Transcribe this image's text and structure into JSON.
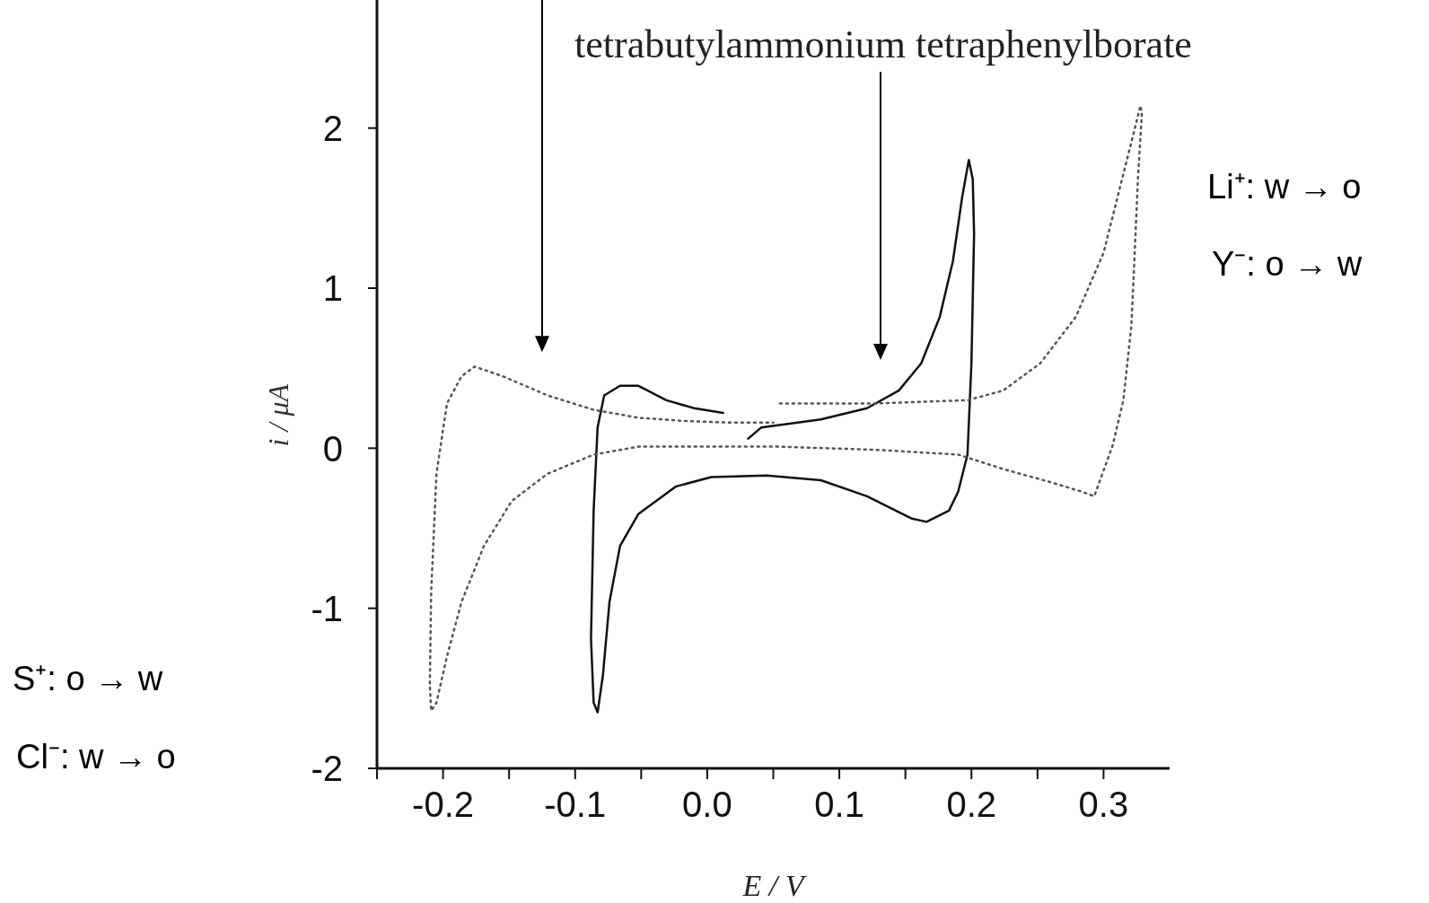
{
  "chart_data": {
    "type": "line",
    "xlabel": "E / V",
    "ylabel": "i / μA",
    "xlim": [
      -0.25,
      0.35
    ],
    "ylim": [
      -2,
      2.8
    ],
    "xticks": [
      {
        "value": -0.25,
        "label": null
      },
      -0.2,
      {
        "value": -0.15,
        "label": null
      },
      -0.1,
      {
        "value": -0.05,
        "label": null
      },
      {
        "value": 0,
        "label": "0.0"
      },
      {
        "value": 0.05,
        "label": null
      },
      0.1,
      {
        "value": 0.15,
        "label": null
      },
      0.2,
      {
        "value": 0.25,
        "label": null
      },
      0.3
    ],
    "yticks": [
      -2,
      -1,
      0,
      1,
      2
    ],
    "marker": "none",
    "series": [
      {
        "color": "#111111",
        "line_style": "solid",
        "x": [
          0.031,
          0.041,
          0.086,
          0.121,
          0.145,
          0.162,
          0.176,
          0.186,
          0.193,
          0.198,
          0.201,
          0.202,
          0.2,
          0.197,
          0.19,
          0.183,
          0.166,
          0.155,
          0.121,
          0.086,
          0.045,
          0.003,
          -0.024,
          -0.052,
          -0.066,
          -0.074,
          -0.079,
          -0.083,
          -0.086,
          -0.088,
          -0.086,
          -0.083,
          -0.078,
          -0.066,
          -0.052,
          -0.031,
          -0.01,
          0.012
        ],
        "values": [
          0.06,
          0.13,
          0.18,
          0.25,
          0.36,
          0.53,
          0.82,
          1.17,
          1.57,
          1.8,
          1.68,
          1.34,
          0.53,
          -0.04,
          -0.27,
          -0.39,
          -0.46,
          -0.44,
          -0.3,
          -0.2,
          -0.17,
          -0.18,
          -0.24,
          -0.41,
          -0.61,
          -0.96,
          -1.42,
          -1.65,
          -1.59,
          -1.19,
          -0.39,
          0.13,
          0.33,
          0.39,
          0.39,
          0.3,
          0.25,
          0.22
        ]
      },
      {
        "color": "#555555",
        "line_style": "dotted",
        "x": [
          0.055,
          0.086,
          0.128,
          0.197,
          0.224,
          0.252,
          0.279,
          0.3,
          0.314,
          0.321,
          0.328,
          0.329,
          0.326,
          0.323,
          0.321,
          0.315,
          0.307,
          0.293,
          0.283,
          0.259,
          0.224,
          0.19,
          0.128,
          0.052,
          -0.052,
          -0.086,
          -0.121,
          -0.148,
          -0.169,
          -0.186,
          -0.197,
          -0.205,
          -0.209,
          -0.21,
          -0.209,
          -0.205,
          -0.197,
          -0.186,
          -0.176,
          -0.155,
          -0.121,
          -0.086,
          -0.052,
          -0.017,
          0.017,
          0.05
        ],
        "values": [
          0.28,
          0.28,
          0.28,
          0.3,
          0.36,
          0.53,
          0.82,
          1.22,
          1.68,
          1.91,
          2.14,
          2.09,
          1.68,
          1.11,
          0.76,
          0.3,
          0.02,
          -0.3,
          -0.27,
          -0.21,
          -0.13,
          -0.04,
          -0.01,
          0.01,
          0.01,
          -0.04,
          -0.16,
          -0.33,
          -0.61,
          -0.96,
          -1.3,
          -1.59,
          -1.64,
          -1.48,
          -0.9,
          -0.16,
          0.28,
          0.45,
          0.51,
          0.45,
          0.33,
          0.24,
          0.19,
          0.17,
          0.16,
          0.16
        ]
      }
    ],
    "annotations": [
      "tetrabutylammonium tetraphenylborate",
      "Li⁺: w → o",
      "Y⁻: o → w",
      "S⁺: o → w",
      "Cl⁻: w → o"
    ]
  }
}
